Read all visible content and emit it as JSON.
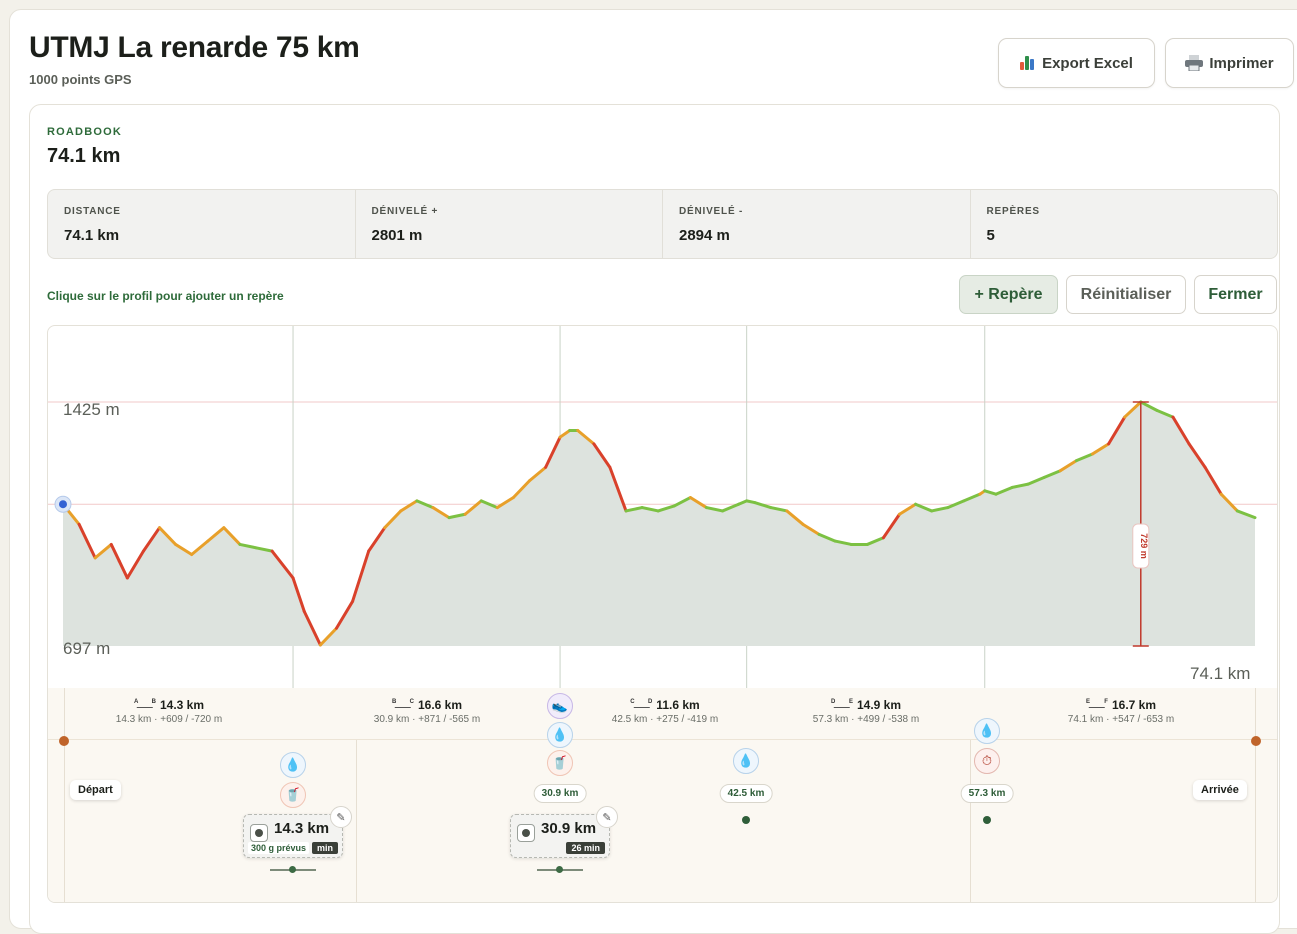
{
  "header": {
    "title": "UTMJ La renarde 75 km",
    "subtitle": "1000 points GPS",
    "export_label": "Export Excel",
    "print_label": "Imprimer"
  },
  "roadbook": {
    "label": "ROADBOOK",
    "distance": "74.1 km",
    "stats": [
      {
        "label": "DISTANCE",
        "value": "74.1 km"
      },
      {
        "label": "DÉNIVELÉ +",
        "value": "2801 m"
      },
      {
        "label": "DÉNIVELÉ -",
        "value": "2894 m"
      },
      {
        "label": "REPÈRES",
        "value": "5"
      }
    ],
    "hint": "Clique sur le profil pour ajouter un repère",
    "add_label": "+ Repère",
    "reset_label": "Réinitialiser",
    "close_label": "Fermer"
  },
  "profile": {
    "max_label": "1425 m",
    "min_label": "697 m",
    "end_label": "74.1 km",
    "climb_label": "729 m",
    "start_label": "Départ",
    "end_point_label": "Arrivée",
    "colors": {
      "fill": "#dde3de",
      "steep": "#d9412b",
      "medium": "#e8a02a",
      "flat": "#7cc143"
    },
    "segments": [
      {
        "from": "A",
        "to": "B",
        "length": "14.3 km",
        "detail": "14.3 km · +609 / -720 m"
      },
      {
        "from": "B",
        "to": "C",
        "length": "16.6 km",
        "detail": "30.9 km · +871 / -565 m"
      },
      {
        "from": "C",
        "to": "D",
        "length": "11.6 km",
        "detail": "42.5 km · +275 / -419 m"
      },
      {
        "from": "D",
        "to": "E",
        "length": "14.9 km",
        "detail": "57.3 km · +499 / -538 m"
      },
      {
        "from": "E",
        "to": "F",
        "length": "16.7 km",
        "detail": "74.1 km · +547 / -653 m"
      }
    ],
    "markers": [
      {
        "km": "14.3 km",
        "icons": [
          "water-icon",
          "food-icon"
        ],
        "duration": "min",
        "planned": "300 g prévus"
      },
      {
        "km": "30.9 km",
        "icons": [
          "shoe-icon",
          "water-icon",
          "food-icon"
        ],
        "pill": "30.9 km",
        "duration": "26 min"
      },
      {
        "km": "42.5 km",
        "icons": [
          "water-icon"
        ],
        "pill": "42.5 km"
      },
      {
        "km": "57.3 km",
        "icons": [
          "water-icon",
          "timer-icon"
        ],
        "pill": "57.3 km"
      }
    ]
  },
  "chart_data": {
    "type": "area",
    "xlabel": "",
    "ylabel": "",
    "xlim": [
      0,
      74.1
    ],
    "ylim": [
      697,
      1425
    ],
    "x": [
      0,
      1,
      2,
      3,
      3.5,
      4,
      5,
      6,
      7,
      8,
      9,
      10,
      11,
      12,
      13,
      14.3,
      15,
      16,
      17,
      18,
      19,
      20,
      21,
      22,
      23,
      24,
      25,
      26,
      27,
      28,
      29,
      30,
      30.9,
      31.5,
      32,
      33,
      34,
      35,
      36,
      37,
      38,
      39,
      40,
      41,
      42,
      42.5,
      43,
      44,
      45,
      46,
      47,
      48,
      49,
      50,
      51,
      52,
      53,
      54,
      55,
      56,
      57,
      57.3,
      58,
      59,
      60,
      61,
      62,
      63,
      64,
      65,
      66,
      67,
      68,
      69,
      70,
      71,
      72,
      73,
      74.1
    ],
    "y": [
      1120,
      1060,
      960,
      1000,
      950,
      900,
      980,
      1050,
      1000,
      970,
      1010,
      1050,
      1000,
      990,
      980,
      900,
      800,
      700,
      750,
      830,
      980,
      1050,
      1100,
      1130,
      1110,
      1080,
      1090,
      1130,
      1110,
      1140,
      1190,
      1230,
      1320,
      1340,
      1340,
      1300,
      1230,
      1100,
      1110,
      1100,
      1115,
      1140,
      1110,
      1100,
      1120,
      1130,
      1125,
      1110,
      1100,
      1060,
      1030,
      1010,
      1000,
      1000,
      1020,
      1090,
      1120,
      1100,
      1110,
      1130,
      1150,
      1160,
      1150,
      1170,
      1180,
      1200,
      1220,
      1250,
      1270,
      1300,
      1380,
      1425,
      1400,
      1380,
      1300,
      1230,
      1150,
      1100,
      1080
    ]
  }
}
